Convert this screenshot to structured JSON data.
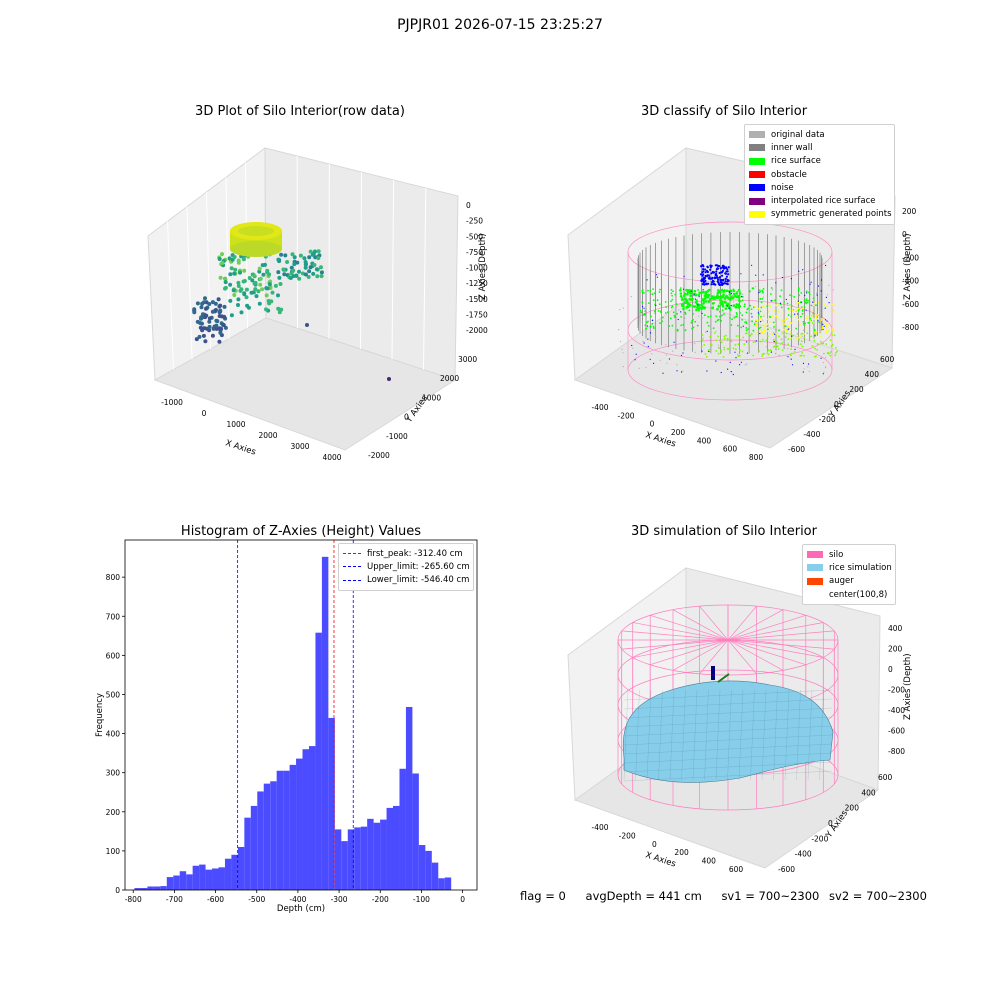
{
  "suptitle": "PJPJR01 2026-07-15 23:25:27",
  "colors": {
    "bar": "#4b4bff",
    "first_peak_line": "#ff0000",
    "limit_lines": "#0000cc",
    "pane": "#f2f2f2"
  },
  "panels": {
    "raw": {
      "title": "3D Plot of Silo Interior(row data)",
      "xlabel": "X Axies",
      "ylabel": "Y Axies",
      "zlabel": "Z Axies (Depth)",
      "xticks": [
        "-1000",
        "0",
        "1000",
        "2000",
        "3000",
        "4000"
      ],
      "yticks": [
        "-2000",
        "-1000",
        "0",
        "1000",
        "2000",
        "3000"
      ],
      "zticks": [
        "0",
        "-250",
        "-500",
        "-750",
        "-1000",
        "-1250",
        "-1500",
        "-1750",
        "-2000"
      ]
    },
    "classify": {
      "title": "3D classify of Silo Interior",
      "xlabel": "X Axies",
      "ylabel": "Y Axies",
      "zlabel": "Z Axies (Depth)",
      "xticks": [
        "-400",
        "-200",
        "0",
        "200",
        "400",
        "600",
        "800"
      ],
      "yticks": [
        "-600",
        "-400",
        "-200",
        "0",
        "200",
        "400",
        "600"
      ],
      "zticks": [
        "200",
        "0",
        "-200",
        "-400",
        "-600",
        "-800"
      ],
      "legend": [
        {
          "label": "original data",
          "color": "#b0b0b0"
        },
        {
          "label": "inner wall",
          "color": "#808080"
        },
        {
          "label": "rice surface",
          "color": "#00ff00"
        },
        {
          "label": "obstacle",
          "color": "#ff0000"
        },
        {
          "label": "noise",
          "color": "#0000ff"
        },
        {
          "label": "interpolated rice surface",
          "color": "#800080"
        },
        {
          "label": "symmetric generated points",
          "color": "#ffff00"
        }
      ]
    },
    "simulation": {
      "title": "3D simulation of Silo Interior",
      "xlabel": "X Axies",
      "ylabel": "Y Axies",
      "zlabel": "Z Axies (Depth)",
      "xticks": [
        "-400",
        "-200",
        "0",
        "200",
        "400",
        "600"
      ],
      "yticks": [
        "-600",
        "-400",
        "-200",
        "0",
        "200",
        "400",
        "600"
      ],
      "zticks": [
        "400",
        "200",
        "0",
        "-200",
        "-400",
        "-600",
        "-800"
      ],
      "legend": [
        {
          "label": "silo",
          "color": "#ff69b4"
        },
        {
          "label": "rice simulation",
          "color": "#87ceeb"
        },
        {
          "label": "auger",
          "color": "#ff4500"
        },
        {
          "label": "center(100,8)",
          "color": "#ffffff"
        }
      ]
    }
  },
  "chart_data": [
    {
      "type": "bar",
      "title": "Histogram of Z-Axies (Height) Values",
      "xlabel": "Depth (cm)",
      "ylabel": "Frequency",
      "xlim": [
        -820,
        35
      ],
      "ylim": [
        0,
        895
      ],
      "xticks": [
        -800,
        -700,
        -600,
        -500,
        -400,
        -300,
        -200,
        -100,
        0
      ],
      "yticks": [
        0,
        100,
        200,
        300,
        400,
        500,
        600,
        700,
        800
      ],
      "bin_start": -797,
      "bin_width": 15.7,
      "values": [
        5,
        5,
        9,
        9,
        10,
        33,
        37,
        48,
        40,
        62,
        65,
        52,
        55,
        58,
        80,
        90,
        110,
        185,
        215,
        252,
        272,
        278,
        305,
        305,
        320,
        336,
        360,
        368,
        658,
        852,
        440,
        155,
        125,
        155,
        160,
        162,
        182,
        172,
        180,
        210,
        215,
        310,
        468,
        298,
        115,
        100,
        70,
        30,
        32
      ],
      "lines": [
        {
          "label": "first_peak: -312.40 cm",
          "x": -312.4,
          "color": "red"
        },
        {
          "label": "Upper_limit: -265.60 cm",
          "x": -265.6,
          "color": "blue"
        },
        {
          "label": "Lower_limit: -546.40 cm",
          "x": -546.4,
          "color": "blue"
        }
      ],
      "legend_position": "upper right"
    }
  ],
  "footer": {
    "flag": "flag = 0",
    "avg": "avgDepth = 441 cm",
    "sv1": "sv1 = 700~2300",
    "sv2": "sv2 = 700~2300"
  }
}
